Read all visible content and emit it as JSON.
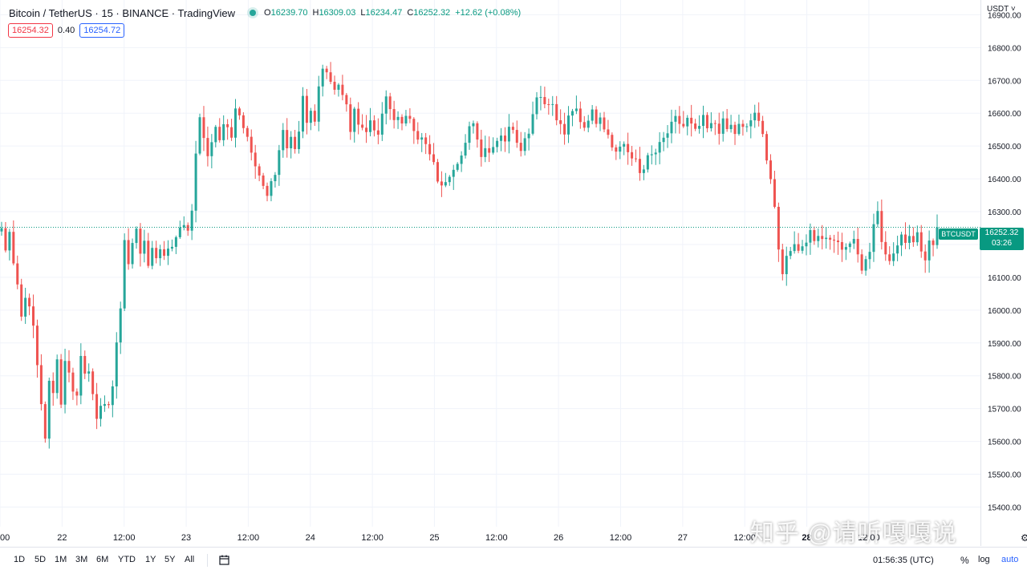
{
  "header": {
    "title": "Bitcoin / TetherUS · 15 · BINANCE · TradingView",
    "ohlc": [
      {
        "label": "O",
        "value": "16239.70"
      },
      {
        "label": "H",
        "value": "16309.03"
      },
      {
        "label": "L",
        "value": "16234.47"
      },
      {
        "label": "C",
        "value": "16252.32"
      }
    ],
    "change": "+12.62 (+0.08%)"
  },
  "quote": {
    "bid": "16254.32",
    "spread": "0.40",
    "ask": "16254.72"
  },
  "currency_button": "USDT",
  "price_tag": {
    "symbol": "BTCUSDT",
    "price": "16252.32",
    "countdown": "03:26"
  },
  "bottom_bar": {
    "ranges": [
      "1D",
      "5D",
      "1M",
      "3M",
      "6M",
      "YTD",
      "1Y",
      "5Y",
      "All"
    ],
    "clock": "01:56:35 (UTC)",
    "percent": "%",
    "log": "log",
    "auto": "auto"
  },
  "watermark": "知乎 @请听嘎嘎说",
  "colors": {
    "up": "#26a69a",
    "down": "#ef5350",
    "accent": "#2962ff",
    "grid": "#f0f3fa",
    "tag": "#089981"
  },
  "chart_data": {
    "type": "candlestick",
    "title": "",
    "symbol": "BTCUSDT",
    "interval": "15",
    "yticks": [
      "15400.00",
      "15500.00",
      "15600.00",
      "15700.00",
      "15800.00",
      "15900.00",
      "16000.00",
      "16100.00",
      "16200.00",
      "16300.00",
      "16400.00",
      "16500.00",
      "16600.00",
      "16700.00",
      "16800.00",
      "16900.00"
    ],
    "ylim": [
      15340,
      16945
    ],
    "xticks": [
      "00",
      "22",
      "12:00",
      "23",
      "12:00",
      "24",
      "12:00",
      "25",
      "12:00",
      "26",
      "12:00",
      "27",
      "12:00",
      "28",
      "12:00"
    ],
    "bold_xtick": "28",
    "last_close": 16252.32,
    "grid": true,
    "path": [
      [
        0,
        16250
      ],
      [
        1,
        16180
      ],
      [
        2,
        16250
      ],
      [
        3,
        16150
      ],
      [
        4,
        16080
      ],
      [
        5,
        15980
      ],
      [
        6,
        16050
      ],
      [
        8,
        15950
      ],
      [
        10,
        15720
      ],
      [
        11,
        15600
      ],
      [
        12,
        15780
      ],
      [
        13,
        15760
      ],
      [
        14,
        15850
      ],
      [
        15,
        15720
      ],
      [
        16,
        15840
      ],
      [
        17,
        15820
      ],
      [
        18,
        15750
      ],
      [
        19,
        15740
      ],
      [
        20,
        15870
      ],
      [
        21,
        15820
      ],
      [
        22,
        15800
      ],
      [
        23,
        15730
      ],
      [
        24,
        15680
      ],
      [
        25,
        15710
      ],
      [
        26,
        15700
      ],
      [
        27,
        15720
      ],
      [
        28,
        15770
      ],
      [
        29,
        15900
      ],
      [
        30,
        16000
      ],
      [
        31,
        16220
      ],
      [
        32,
        16150
      ],
      [
        33,
        16190
      ],
      [
        34,
        16250
      ],
      [
        35,
        16180
      ],
      [
        36,
        16210
      ],
      [
        37,
        16140
      ],
      [
        38,
        16200
      ],
      [
        39,
        16150
      ],
      [
        40,
        16190
      ],
      [
        41,
        16170
      ],
      [
        42,
        16200
      ],
      [
        43,
        16180
      ],
      [
        44,
        16230
      ],
      [
        45,
        16240
      ],
      [
        46,
        16260
      ],
      [
        47,
        16250
      ],
      [
        48,
        16300
      ],
      [
        49,
        16480
      ],
      [
        50,
        16580
      ],
      [
        51,
        16520
      ],
      [
        52,
        16480
      ],
      [
        53,
        16520
      ],
      [
        54,
        16560
      ],
      [
        55,
        16530
      ],
      [
        56,
        16580
      ],
      [
        57,
        16560
      ],
      [
        58,
        16520
      ],
      [
        59,
        16610
      ],
      [
        60,
        16580
      ],
      [
        61,
        16560
      ],
      [
        62,
        16530
      ],
      [
        63,
        16480
      ],
      [
        64,
        16440
      ],
      [
        65,
        16400
      ],
      [
        66,
        16380
      ],
      [
        67,
        16350
      ],
      [
        68,
        16400
      ],
      [
        69,
        16420
      ],
      [
        70,
        16480
      ],
      [
        71,
        16560
      ],
      [
        72,
        16500
      ],
      [
        73,
        16520
      ],
      [
        74,
        16480
      ],
      [
        75,
        16530
      ],
      [
        76,
        16640
      ],
      [
        77,
        16560
      ],
      [
        78,
        16600
      ],
      [
        79,
        16570
      ],
      [
        80,
        16680
      ],
      [
        81,
        16750
      ],
      [
        82,
        16730
      ],
      [
        83,
        16700
      ],
      [
        84,
        16680
      ],
      [
        85,
        16690
      ],
      [
        86,
        16650
      ],
      [
        87,
        16620
      ],
      [
        88,
        16550
      ],
      [
        89,
        16600
      ],
      [
        90,
        16580
      ],
      [
        91,
        16560
      ],
      [
        92,
        16540
      ],
      [
        93,
        16580
      ],
      [
        94,
        16560
      ],
      [
        95,
        16520
      ],
      [
        96,
        16600
      ],
      [
        97,
        16640
      ],
      [
        98,
        16610
      ],
      [
        99,
        16580
      ],
      [
        100,
        16600
      ],
      [
        101,
        16560
      ],
      [
        102,
        16580
      ],
      [
        103,
        16590
      ],
      [
        104,
        16560
      ],
      [
        105,
        16530
      ],
      [
        106,
        16520
      ],
      [
        107,
        16500
      ],
      [
        108,
        16470
      ],
      [
        109,
        16440
      ],
      [
        110,
        16400
      ],
      [
        111,
        16370
      ],
      [
        112,
        16400
      ],
      [
        113,
        16420
      ],
      [
        114,
        16440
      ],
      [
        115,
        16460
      ],
      [
        116,
        16470
      ],
      [
        117,
        16500
      ],
      [
        118,
        16550
      ],
      [
        119,
        16580
      ],
      [
        120,
        16520
      ],
      [
        121,
        16480
      ],
      [
        122,
        16500
      ],
      [
        123,
        16480
      ],
      [
        124,
        16510
      ],
      [
        125,
        16520
      ],
      [
        126,
        16540
      ],
      [
        127,
        16520
      ],
      [
        128,
        16550
      ],
      [
        129,
        16560
      ],
      [
        130,
        16520
      ],
      [
        131,
        16500
      ],
      [
        132,
        16520
      ],
      [
        133,
        16550
      ],
      [
        134,
        16600
      ],
      [
        135,
        16660
      ],
      [
        136,
        16650
      ],
      [
        137,
        16630
      ],
      [
        138,
        16640
      ],
      [
        139,
        16620
      ],
      [
        140,
        16580
      ],
      [
        141,
        16560
      ],
      [
        142,
        16540
      ],
      [
        143,
        16580
      ],
      [
        144,
        16600
      ],
      [
        145,
        16610
      ],
      [
        146,
        16580
      ],
      [
        147,
        16560
      ],
      [
        148,
        16590
      ],
      [
        149,
        16600
      ],
      [
        150,
        16580
      ],
      [
        151,
        16600
      ],
      [
        152,
        16560
      ],
      [
        153,
        16540
      ],
      [
        154,
        16510
      ],
      [
        155,
        16480
      ],
      [
        156,
        16500
      ],
      [
        157,
        16510
      ],
      [
        158,
        16480
      ],
      [
        159,
        16450
      ],
      [
        160,
        16460
      ],
      [
        161,
        16420
      ],
      [
        162,
        16440
      ],
      [
        163,
        16460
      ],
      [
        164,
        16470
      ],
      [
        165,
        16480
      ],
      [
        166,
        16500
      ],
      [
        167,
        16520
      ],
      [
        168,
        16540
      ],
      [
        169,
        16560
      ],
      [
        170,
        16580
      ],
      [
        171,
        16570
      ],
      [
        172,
        16560
      ],
      [
        173,
        16580
      ],
      [
        174,
        16560
      ],
      [
        175,
        16540
      ],
      [
        176,
        16560
      ],
      [
        177,
        16580
      ],
      [
        178,
        16550
      ],
      [
        179,
        16560
      ],
      [
        180,
        16570
      ],
      [
        181,
        16550
      ],
      [
        182,
        16570
      ],
      [
        183,
        16550
      ],
      [
        184,
        16560
      ],
      [
        185,
        16540
      ],
      [
        186,
        16560
      ],
      [
        187,
        16550
      ],
      [
        188,
        16560
      ],
      [
        189,
        16580
      ],
      [
        190,
        16590
      ],
      [
        191,
        16570
      ],
      [
        192,
        16550
      ],
      [
        193,
        16460
      ],
      [
        194,
        16400
      ],
      [
        195,
        16300
      ],
      [
        196,
        16180
      ],
      [
        197,
        16120
      ],
      [
        198,
        16160
      ],
      [
        199,
        16190
      ],
      [
        200,
        16210
      ],
      [
        201,
        16180
      ],
      [
        202,
        16200
      ],
      [
        203,
        16220
      ],
      [
        204,
        16230
      ],
      [
        205,
        16210
      ],
      [
        206,
        16240
      ],
      [
        207,
        16220
      ],
      [
        208,
        16230
      ],
      [
        209,
        16210
      ],
      [
        210,
        16220
      ],
      [
        211,
        16200
      ],
      [
        212,
        16190
      ],
      [
        213,
        16180
      ],
      [
        214,
        16200
      ],
      [
        215,
        16220
      ],
      [
        216,
        16160
      ],
      [
        217,
        16130
      ],
      [
        218,
        16160
      ],
      [
        219,
        16180
      ],
      [
        220,
        16250
      ],
      [
        221,
        16300
      ],
      [
        222,
        16220
      ],
      [
        223,
        16180
      ],
      [
        224,
        16150
      ],
      [
        225,
        16180
      ],
      [
        226,
        16200
      ],
      [
        227,
        16230
      ],
      [
        228,
        16210
      ],
      [
        229,
        16240
      ],
      [
        230,
        16220
      ],
      [
        231,
        16230
      ],
      [
        232,
        16180
      ],
      [
        233,
        16150
      ],
      [
        234,
        16200
      ],
      [
        235,
        16210
      ],
      [
        236,
        16252
      ]
    ]
  }
}
